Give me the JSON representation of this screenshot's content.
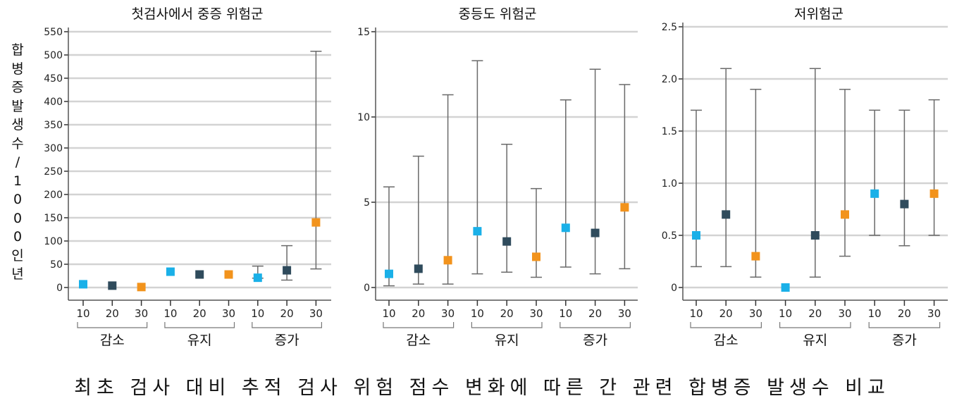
{
  "y_axis_label": "합병증발생수/1000인년",
  "caption": "최초 검사 대비 추적 검사 위험 점수 변화에 따른 간 관련 합병증 발생수 비교",
  "colors": {
    "10": "#1ab0e8",
    "20": "#2f4b5c",
    "30": "#f2931c",
    "grid": "#d3d3d3",
    "error_bar": "#6a6a6a"
  },
  "chart_data": [
    {
      "type": "scatter",
      "title": "첫검사에서 중증 위험군",
      "ylim": [
        0,
        550
      ],
      "yticks": [
        0,
        50,
        100,
        150,
        200,
        250,
        300,
        350,
        400,
        450,
        500,
        550
      ],
      "grid": true,
      "groups": [
        "감소",
        "유지",
        "증가"
      ],
      "categories": [
        "10",
        "20",
        "30"
      ],
      "points": [
        {
          "group": "감소",
          "x": "10",
          "y": 7
        },
        {
          "group": "감소",
          "x": "20",
          "y": 4
        },
        {
          "group": "감소",
          "x": "30",
          "y": 1
        },
        {
          "group": "유지",
          "x": "10",
          "y": 34
        },
        {
          "group": "유지",
          "x": "20",
          "y": 28
        },
        {
          "group": "유지",
          "x": "30",
          "y": 28
        },
        {
          "group": "증가",
          "x": "10",
          "y": 21,
          "low": 20,
          "high": 46
        },
        {
          "group": "증가",
          "x": "20",
          "y": 37,
          "low": 16,
          "high": 90
        },
        {
          "group": "증가",
          "x": "30",
          "y": 140,
          "low": 40,
          "high": 508
        }
      ]
    },
    {
      "type": "scatter",
      "title": "중등도 위험군",
      "ylim": [
        0,
        15
      ],
      "yticks": [
        0,
        5,
        10,
        15
      ],
      "grid": true,
      "groups": [
        "감소",
        "유지",
        "증가"
      ],
      "categories": [
        "10",
        "20",
        "30"
      ],
      "points": [
        {
          "group": "감소",
          "x": "10",
          "y": 0.8,
          "low": 0.1,
          "high": 5.9
        },
        {
          "group": "감소",
          "x": "20",
          "y": 1.1,
          "low": 0.2,
          "high": 7.7
        },
        {
          "group": "감소",
          "x": "30",
          "y": 1.6,
          "low": 0.2,
          "high": 11.3
        },
        {
          "group": "유지",
          "x": "10",
          "y": 3.3,
          "low": 0.8,
          "high": 13.3
        },
        {
          "group": "유지",
          "x": "20",
          "y": 2.7,
          "low": 0.9,
          "high": 8.4
        },
        {
          "group": "유지",
          "x": "30",
          "y": 1.8,
          "low": 0.6,
          "high": 5.8
        },
        {
          "group": "증가",
          "x": "10",
          "y": 3.5,
          "low": 1.2,
          "high": 11.0
        },
        {
          "group": "증가",
          "x": "20",
          "y": 3.2,
          "low": 0.8,
          "high": 12.8
        },
        {
          "group": "증가",
          "x": "30",
          "y": 4.7,
          "low": 1.1,
          "high": 11.9
        }
      ]
    },
    {
      "type": "scatter",
      "title": "저위험군",
      "ylim": [
        0,
        2.5
      ],
      "yticks": [
        "0",
        "0.5",
        "1.0",
        "1.5",
        "2.0",
        "2.5"
      ],
      "grid": true,
      "groups": [
        "감소",
        "유지",
        "증가"
      ],
      "categories": [
        "10",
        "20",
        "30"
      ],
      "points": [
        {
          "group": "감소",
          "x": "10",
          "y": 0.5,
          "low": 0.2,
          "high": 1.7
        },
        {
          "group": "감소",
          "x": "20",
          "y": 0.7,
          "low": 0.2,
          "high": 2.1
        },
        {
          "group": "감소",
          "x": "30",
          "y": 0.3,
          "low": 0.1,
          "high": 1.9
        },
        {
          "group": "유지",
          "x": "10",
          "y": 0.0
        },
        {
          "group": "유지",
          "x": "20",
          "y": 0.5,
          "low": 0.1,
          "high": 2.1
        },
        {
          "group": "유지",
          "x": "30",
          "y": 0.7,
          "low": 0.3,
          "high": 1.9
        },
        {
          "group": "증가",
          "x": "10",
          "y": 0.9,
          "low": 0.5,
          "high": 1.7
        },
        {
          "group": "증가",
          "x": "20",
          "y": 0.8,
          "low": 0.4,
          "high": 1.7
        },
        {
          "group": "증가",
          "x": "30",
          "y": 0.9,
          "low": 0.5,
          "high": 1.8
        }
      ]
    }
  ]
}
